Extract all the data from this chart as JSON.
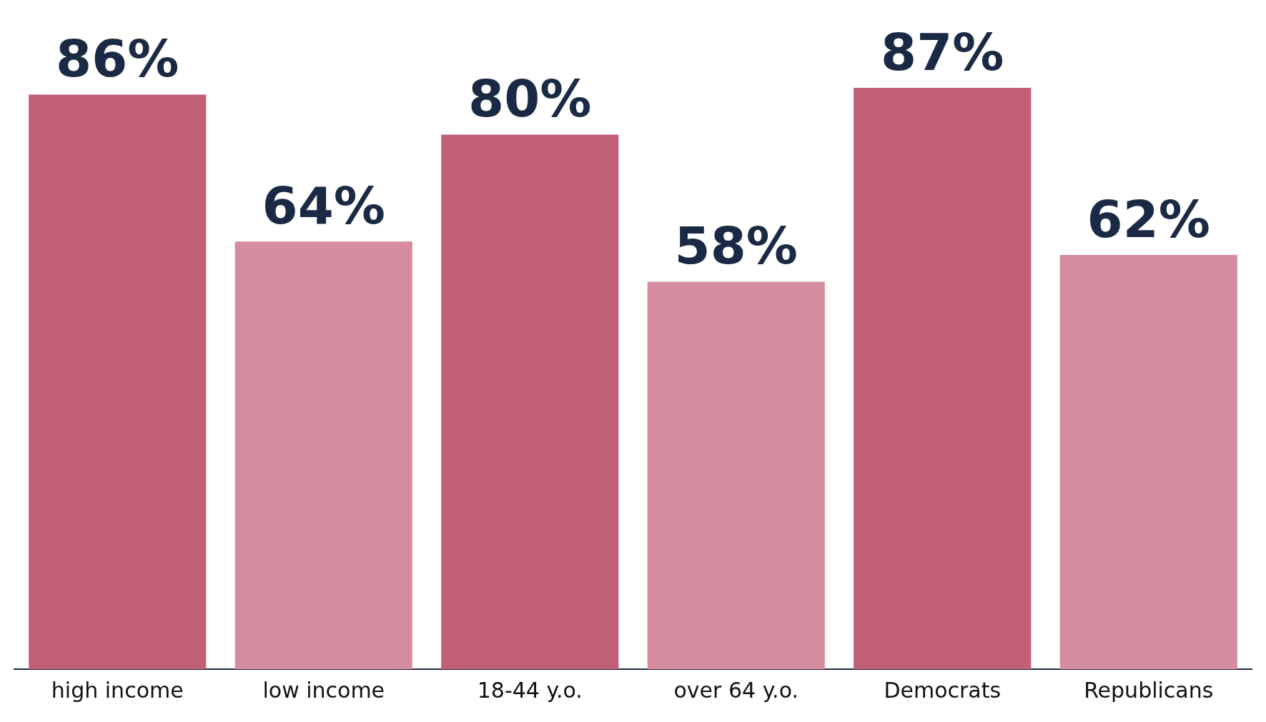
{
  "chart_data": {
    "type": "bar",
    "categories": [
      "high income",
      "low income",
      "18-44 y.o.",
      "over 64 y.o.",
      "Democrats",
      "Republicans"
    ],
    "values": [
      86,
      64,
      80,
      58,
      87,
      62
    ],
    "colors": [
      "#c05f76",
      "#d48c9e",
      "#c05f76",
      "#d48c9e",
      "#c05f76",
      "#d48c9e"
    ],
    "value_labels": [
      "86%",
      "64%",
      "80%",
      "58%",
      "87%",
      "62%"
    ],
    "grid": false,
    "legend": false
  }
}
